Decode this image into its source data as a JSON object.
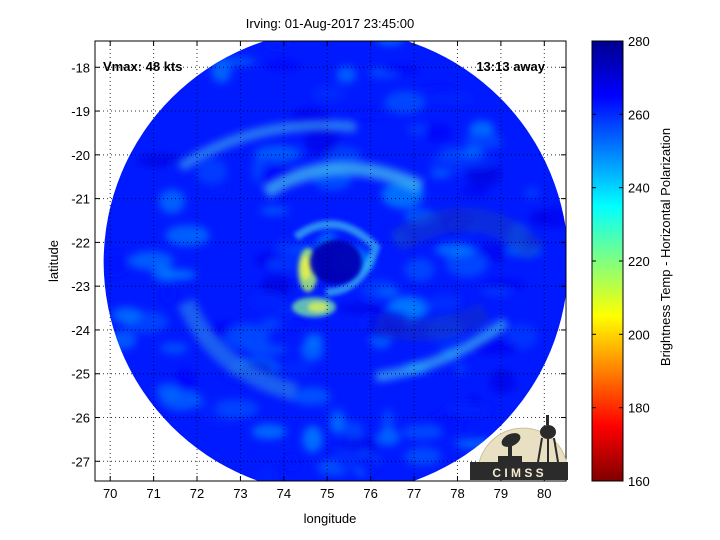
{
  "map": {
    "title": "Irving: 01-Aug-2017 23:45:00",
    "xlabel": "longitude",
    "ylabel": "latitude",
    "vmax_text": "Vmax: 48 kts",
    "age_text": "13:13 away",
    "x_ticks": [
      70,
      71,
      72,
      73,
      74,
      75,
      76,
      77,
      78,
      79,
      80
    ],
    "y_ticks": [
      -18,
      -19,
      -20,
      -21,
      -22,
      -23,
      -24,
      -25,
      -26,
      -27
    ],
    "xlim": [
      69.65,
      80.5
    ],
    "ylim": [
      -27.45,
      -17.4
    ],
    "grid": true,
    "swath": {
      "center_lon": 75.2,
      "center_lat": -22.45,
      "radius_deg": 5.35,
      "background_temp_k": 262
    },
    "storm": {
      "eye_lon": 75.2,
      "eye_lat": -22.45,
      "eye_temp_k": 275
    }
  },
  "colorbar": {
    "label": "Brightness Temp - Horizontal Polarization",
    "min": 160,
    "max": 280,
    "ticks": [
      160,
      180,
      200,
      220,
      240,
      260,
      280
    ],
    "colors": [
      "#7f0000",
      "#ff0000",
      "#ff8000",
      "#ffff00",
      "#80ff80",
      "#00ffff",
      "#0080ff",
      "#0000ff",
      "#00008f"
    ]
  },
  "logo": {
    "text": "C I M S S"
  }
}
